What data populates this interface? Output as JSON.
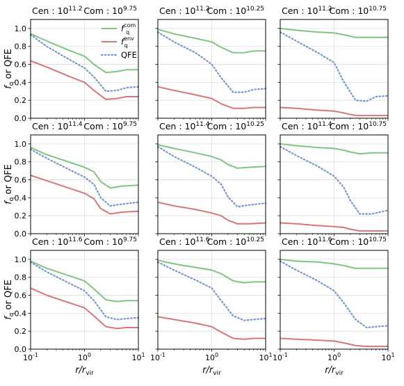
{
  "figure": {
    "xlabel": "r/r",
    "xlabel_sub": "vir",
    "ylabel_main": "f",
    "ylabel_sub": "q",
    "ylabel_rest": " or QFE",
    "legend": [
      {
        "label": "f",
        "sup": "com",
        "sub": "q",
        "color": "#7fc47f",
        "style": "solid"
      },
      {
        "label": "f",
        "sup": "env",
        "sub": "q",
        "color": "#d97575",
        "style": "solid"
      },
      {
        "label": "QFE",
        "sup": "",
        "sub": "",
        "color": "#7397d6",
        "style": "dotted"
      }
    ],
    "colors": {
      "com": "#7fc47f",
      "env": "#d97575",
      "qfe": "#7397d6",
      "grid": "#dddddd"
    }
  },
  "chart_data": [
    {
      "type": "line",
      "title_cen": "Cen : 10",
      "cen_exp": "11.2",
      "title_com": "Com : 10",
      "com_exp": "9.75",
      "xscale": "log",
      "xlim": [
        0.1,
        10
      ],
      "ylim": [
        0,
        1.1
      ],
      "x": [
        0.1,
        0.2,
        0.5,
        1,
        1.5,
        2.5,
        4,
        6,
        10
      ],
      "series": [
        {
          "name": "f_q^com",
          "values": [
            0.94,
            0.86,
            0.76,
            0.69,
            0.6,
            0.51,
            0.52,
            0.54,
            0.54
          ]
        },
        {
          "name": "f_q^env",
          "values": [
            0.64,
            0.57,
            0.47,
            0.4,
            0.31,
            0.21,
            0.22,
            0.24,
            0.24
          ]
        },
        {
          "name": "QFE",
          "values": [
            0.93,
            0.8,
            0.66,
            0.56,
            0.46,
            0.3,
            0.31,
            0.34,
            0.35
          ]
        }
      ]
    },
    {
      "type": "line",
      "title_cen": "Cen : 10",
      "cen_exp": "11.2",
      "title_com": "Com : 10",
      "com_exp": "10.25",
      "xscale": "log",
      "xlim": [
        0.1,
        10
      ],
      "ylim": [
        0,
        1.1
      ],
      "x": [
        0.1,
        0.2,
        0.5,
        1,
        1.5,
        2.5,
        4,
        6,
        10
      ],
      "series": [
        {
          "name": "f_q^com",
          "values": [
            0.99,
            0.94,
            0.89,
            0.85,
            0.79,
            0.73,
            0.73,
            0.75,
            0.75
          ]
        },
        {
          "name": "f_q^env",
          "values": [
            0.35,
            0.31,
            0.26,
            0.22,
            0.16,
            0.11,
            0.11,
            0.12,
            0.12
          ]
        },
        {
          "name": "QFE",
          "values": [
            0.96,
            0.85,
            0.73,
            0.6,
            0.45,
            0.29,
            0.29,
            0.32,
            0.33
          ]
        }
      ]
    },
    {
      "type": "line",
      "title_cen": "Cen : 10",
      "cen_exp": "11.2",
      "title_com": "Com : 10",
      "com_exp": "10.75",
      "xscale": "log",
      "xlim": [
        0.1,
        10
      ],
      "ylim": [
        0,
        1.1
      ],
      "x": [
        0.1,
        0.2,
        0.5,
        1,
        1.5,
        2.5,
        4,
        6,
        10
      ],
      "series": [
        {
          "name": "f_q^com",
          "values": [
            1.0,
            0.98,
            0.96,
            0.95,
            0.93,
            0.9,
            0.9,
            0.9,
            0.9
          ]
        },
        {
          "name": "f_q^env",
          "values": [
            0.12,
            0.11,
            0.09,
            0.08,
            0.06,
            0.03,
            0.03,
            0.03,
            0.03
          ]
        },
        {
          "name": "QFE",
          "values": [
            0.96,
            0.86,
            0.73,
            0.62,
            0.41,
            0.2,
            0.19,
            0.24,
            0.25
          ]
        }
      ]
    },
    {
      "type": "line",
      "title_cen": "Cen : 10",
      "cen_exp": "11.4",
      "title_com": "Com : 10",
      "com_exp": "9.75",
      "xscale": "log",
      "xlim": [
        0.1,
        10
      ],
      "ylim": [
        0,
        1.1
      ],
      "x": [
        0.1,
        0.2,
        0.5,
        1,
        1.5,
        2,
        3,
        5,
        10
      ],
      "series": [
        {
          "name": "f_q^com",
          "values": [
            0.96,
            0.88,
            0.8,
            0.74,
            0.69,
            0.58,
            0.51,
            0.53,
            0.54
          ]
        },
        {
          "name": "f_q^env",
          "values": [
            0.65,
            0.59,
            0.51,
            0.45,
            0.39,
            0.28,
            0.22,
            0.24,
            0.25
          ]
        },
        {
          "name": "QFE",
          "values": [
            0.94,
            0.84,
            0.72,
            0.63,
            0.55,
            0.4,
            0.31,
            0.33,
            0.35
          ]
        }
      ]
    },
    {
      "type": "line",
      "title_cen": "Cen : 10",
      "cen_exp": "11.4",
      "title_com": "Com : 10",
      "com_exp": "10.25",
      "xscale": "log",
      "xlim": [
        0.1,
        10
      ],
      "ylim": [
        0,
        1.1
      ],
      "x": [
        0.1,
        0.2,
        0.5,
        1,
        1.5,
        2,
        3,
        5,
        10
      ],
      "series": [
        {
          "name": "f_q^com",
          "values": [
            0.99,
            0.95,
            0.9,
            0.86,
            0.82,
            0.77,
            0.73,
            0.74,
            0.75
          ]
        },
        {
          "name": "f_q^env",
          "values": [
            0.35,
            0.31,
            0.27,
            0.23,
            0.2,
            0.15,
            0.11,
            0.11,
            0.12
          ]
        },
        {
          "name": "QFE",
          "values": [
            0.97,
            0.86,
            0.74,
            0.64,
            0.55,
            0.41,
            0.3,
            0.32,
            0.34
          ]
        }
      ]
    },
    {
      "type": "line",
      "title_cen": "Cen : 10",
      "cen_exp": "11.4",
      "title_com": "Com : 10",
      "com_exp": "10.75",
      "xscale": "log",
      "xlim": [
        0.1,
        10
      ],
      "ylim": [
        0,
        1.1
      ],
      "x": [
        0.1,
        0.2,
        0.5,
        1,
        1.5,
        2,
        3,
        5,
        10
      ],
      "series": [
        {
          "name": "f_q^com",
          "values": [
            1.0,
            0.98,
            0.96,
            0.95,
            0.93,
            0.91,
            0.89,
            0.9,
            0.9
          ]
        },
        {
          "name": "f_q^env",
          "values": [
            0.12,
            0.11,
            0.09,
            0.08,
            0.07,
            0.05,
            0.03,
            0.03,
            0.03
          ]
        },
        {
          "name": "QFE",
          "values": [
            0.97,
            0.87,
            0.75,
            0.64,
            0.52,
            0.37,
            0.22,
            0.22,
            0.26
          ]
        }
      ]
    },
    {
      "type": "line",
      "title_cen": "Cen : 10",
      "cen_exp": "11.6",
      "title_com": "Com : 10",
      "com_exp": "9.75",
      "xscale": "log",
      "xlim": [
        0.1,
        10
      ],
      "ylim": [
        0,
        1.1
      ],
      "x": [
        0.1,
        0.2,
        0.5,
        1,
        1.5,
        2.5,
        4,
        6,
        10
      ],
      "series": [
        {
          "name": "f_q^com",
          "values": [
            0.98,
            0.9,
            0.82,
            0.76,
            0.67,
            0.55,
            0.53,
            0.54,
            0.54
          ]
        },
        {
          "name": "f_q^env",
          "values": [
            0.68,
            0.6,
            0.52,
            0.46,
            0.37,
            0.25,
            0.23,
            0.24,
            0.24
          ]
        },
        {
          "name": "QFE",
          "values": [
            0.97,
            0.86,
            0.74,
            0.65,
            0.54,
            0.36,
            0.33,
            0.34,
            0.35
          ]
        }
      ]
    },
    {
      "type": "line",
      "title_cen": "Cen : 10",
      "cen_exp": "11.6",
      "title_com": "Com : 10",
      "com_exp": "10.25",
      "xscale": "log",
      "xlim": [
        0.1,
        10
      ],
      "ylim": [
        0,
        1.1
      ],
      "x": [
        0.1,
        0.2,
        0.5,
        1,
        1.5,
        2.5,
        4,
        6,
        10
      ],
      "series": [
        {
          "name": "f_q^com",
          "values": [
            0.99,
            0.95,
            0.91,
            0.88,
            0.84,
            0.76,
            0.74,
            0.75,
            0.75
          ]
        },
        {
          "name": "f_q^env",
          "values": [
            0.36,
            0.33,
            0.29,
            0.25,
            0.19,
            0.12,
            0.11,
            0.12,
            0.12
          ]
        },
        {
          "name": "QFE",
          "values": [
            0.97,
            0.88,
            0.77,
            0.68,
            0.54,
            0.37,
            0.32,
            0.33,
            0.34
          ]
        }
      ]
    },
    {
      "type": "line",
      "title_cen": "Cen : 10",
      "cen_exp": "11.6",
      "title_com": "Com : 10",
      "com_exp": "10.75",
      "xscale": "log",
      "xlim": [
        0.1,
        10
      ],
      "ylim": [
        0,
        1.1
      ],
      "x": [
        0.1,
        0.2,
        0.5,
        1,
        1.5,
        2.5,
        4,
        6,
        10
      ],
      "series": [
        {
          "name": "f_q^com",
          "values": [
            1.0,
            0.98,
            0.97,
            0.95,
            0.93,
            0.9,
            0.9,
            0.9,
            0.9
          ]
        },
        {
          "name": "f_q^env",
          "values": [
            0.12,
            0.11,
            0.1,
            0.09,
            0.07,
            0.04,
            0.03,
            0.03,
            0.03
          ]
        },
        {
          "name": "QFE",
          "values": [
            0.98,
            0.88,
            0.76,
            0.65,
            0.52,
            0.33,
            0.24,
            0.25,
            0.26
          ]
        }
      ]
    }
  ]
}
